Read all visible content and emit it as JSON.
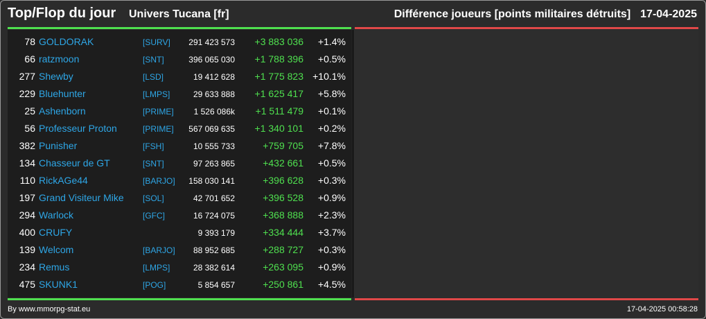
{
  "header": {
    "title": "Top/Flop du jour",
    "universe": "Univers Tucana [fr]",
    "subtitle": "Différence joueurs [points militaires détruits]",
    "date": "17-04-2025"
  },
  "colors": {
    "background": "#2b2b2b",
    "left_panel": "#1d1d1d",
    "right_panel": "#2d2d2d",
    "top_line": "#4fe04f",
    "flop_line": "#e04848",
    "name_link": "#2ea6e6",
    "positive_diff": "#4fe04f"
  },
  "top_rows": [
    {
      "rank": "78",
      "name": "GOLDORAK",
      "alliance": "[SURV]",
      "points": "291 423 573",
      "diff": "+3 883 036",
      "pct": "+1.4%"
    },
    {
      "rank": "66",
      "name": "ratzmoon",
      "alliance": "[SNT]",
      "points": "396 065 030",
      "diff": "+1 788 396",
      "pct": "+0.5%"
    },
    {
      "rank": "277",
      "name": "Shewby",
      "alliance": "[LSD]",
      "points": "19 412 628",
      "diff": "+1 775 823",
      "pct": "+10.1%"
    },
    {
      "rank": "229",
      "name": "Bluehunter",
      "alliance": "[LMPS]",
      "points": "29 633 888",
      "diff": "+1 625 417",
      "pct": "+5.8%"
    },
    {
      "rank": "25",
      "name": "Ashenborn",
      "alliance": "[PRIME]",
      "points": "1 526 086k",
      "diff": "+1 511 479",
      "pct": "+0.1%"
    },
    {
      "rank": "56",
      "name": "Professeur Proton",
      "alliance": "[PRIME]",
      "points": "567 069 635",
      "diff": "+1 340 101",
      "pct": "+0.2%"
    },
    {
      "rank": "382",
      "name": "Punisher",
      "alliance": "[FSH]",
      "points": "10 555 733",
      "diff": "+759 705",
      "pct": "+7.8%"
    },
    {
      "rank": "134",
      "name": "Chasseur de GT",
      "alliance": "[SNT]",
      "points": "97 263 865",
      "diff": "+432 661",
      "pct": "+0.5%"
    },
    {
      "rank": "110",
      "name": "RickAGe44",
      "alliance": "[BARJO]",
      "points": "158 030 141",
      "diff": "+396 628",
      "pct": "+0.3%"
    },
    {
      "rank": "197",
      "name": "Grand Visiteur Mike",
      "alliance": "[SOL]",
      "points": "42 701 652",
      "diff": "+396 528",
      "pct": "+0.9%"
    },
    {
      "rank": "294",
      "name": "Warlock",
      "alliance": "[GFC]",
      "points": "16 724 075",
      "diff": "+368 888",
      "pct": "+2.3%"
    },
    {
      "rank": "400",
      "name": "CRUFY",
      "alliance": "",
      "points": "9 393 179",
      "diff": "+334 444",
      "pct": "+3.7%"
    },
    {
      "rank": "139",
      "name": "Welcom",
      "alliance": "[BARJO]",
      "points": "88 952 685",
      "diff": "+288 727",
      "pct": "+0.3%"
    },
    {
      "rank": "234",
      "name": "Remus",
      "alliance": "[LMPS]",
      "points": "28 382 614",
      "diff": "+263 095",
      "pct": "+0.9%"
    },
    {
      "rank": "475",
      "name": "SKUNK1",
      "alliance": "[POG]",
      "points": "5 854 657",
      "diff": "+250 861",
      "pct": "+4.5%"
    }
  ],
  "footer": {
    "source": "By www.mmorpg-stat.eu",
    "timestamp": "17-04-2025 00:58:28"
  }
}
